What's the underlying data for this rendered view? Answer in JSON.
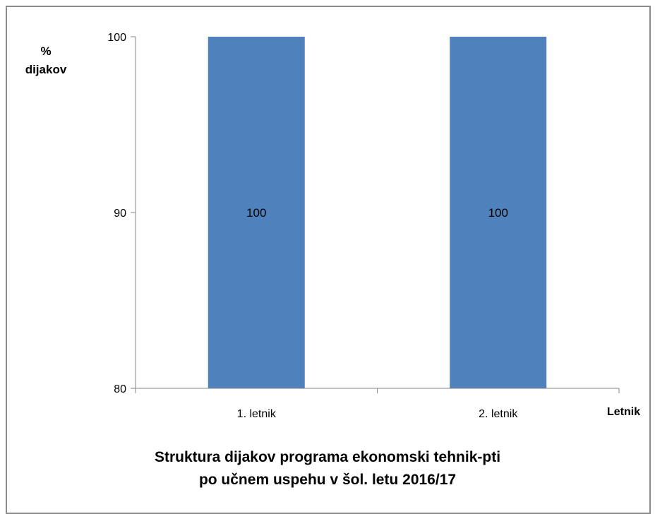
{
  "chart_data": {
    "type": "bar",
    "title_lines": [
      "Struktura dijakov programa ekonomski tehnik-pti",
      "po učnem uspehu v šol. letu 2016/17"
    ],
    "ylabel_lines": [
      "%",
      "dijakov"
    ],
    "xlabel": "Letnik",
    "categories": [
      "1. letnik",
      "2. letnik"
    ],
    "values": [
      100,
      100
    ],
    "data_labels": [
      "100",
      "100"
    ],
    "ylim": [
      80,
      100
    ],
    "yticks": [
      80,
      90,
      100
    ],
    "ytick_labels": [
      "80",
      "90",
      "100"
    ],
    "bar_color": "#4f81bd",
    "grid": false,
    "legend": "none"
  }
}
